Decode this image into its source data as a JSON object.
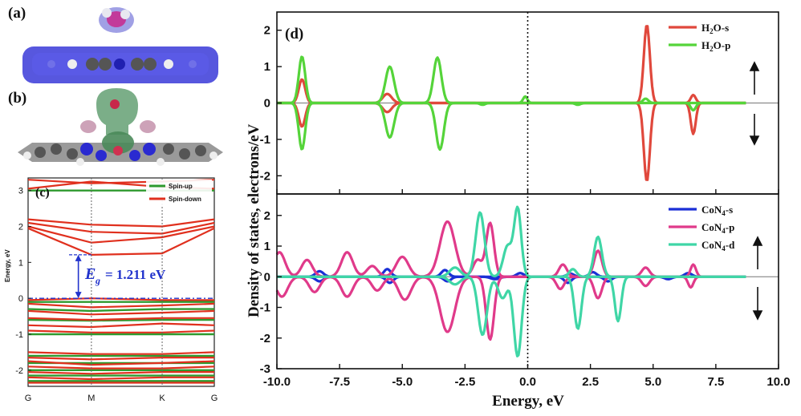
{
  "panel_labels": {
    "a": "(a)",
    "b": "(b)",
    "c": "(c)",
    "d": "(d)"
  },
  "colors": {
    "h2o_s": "#e0483c",
    "h2o_p": "#55d43a",
    "con4_s": "#1a2fd6",
    "con4_p": "#e03a8a",
    "con4_d": "#3fd6a6",
    "spin_up": "#2e9a2e",
    "spin_down": "#e0301e",
    "gap": "#2233cc"
  },
  "molecules": {
    "a_description_icon": "molecule-a-icon",
    "b_description_icon": "molecule-b-icon"
  },
  "band_structure": {
    "ylabel": "Energy, eV",
    "yticks": [
      "3",
      "2",
      "1",
      "0",
      "-1",
      "-2"
    ],
    "ytick_values": [
      3,
      2,
      1,
      0,
      -1,
      -2
    ],
    "ylim": [
      -2.45,
      3.35
    ],
    "kpoints": [
      "G",
      "M",
      "K",
      "G"
    ],
    "kpoint_positions": [
      0,
      0.34,
      0.72,
      1.0
    ],
    "legend": [
      "Spin-up",
      "Spin-down"
    ],
    "gap_symbol": "E",
    "gap_subscript": "g",
    "gap_text": "= 1.211 eV",
    "gap_value": 1.211
  },
  "chart_data": [
    {
      "type": "line",
      "panel": "d-top",
      "title": "",
      "xlabel": "Energy, eV",
      "ylabel": "Density of states, electrons/eV",
      "xlim": [
        -10,
        10
      ],
      "ylim": [
        -2.5,
        2.5
      ],
      "yticks": [
        2,
        1,
        0,
        -1,
        -2
      ],
      "ytick_labels": [
        "2",
        "1",
        "0",
        "-1",
        "-2"
      ],
      "series": [
        {
          "name": "H2O-s",
          "label_main": "H",
          "label_sub": "2",
          "label_rest": "O-s",
          "color_key": "h2o_s",
          "peaks": [
            [
              -9.0,
              0.65,
              0.18
            ],
            [
              -5.6,
              0.25,
              0.25
            ],
            [
              4.75,
              2.15,
              0.17
            ],
            [
              6.6,
              0.22,
              0.14
            ]
          ],
          "down_peaks": [
            [
              -9.0,
              0.65,
              0.18
            ],
            [
              -5.6,
              0.25,
              0.25
            ],
            [
              4.75,
              2.15,
              0.17
            ],
            [
              6.6,
              0.85,
              0.14
            ]
          ]
        },
        {
          "name": "H2O-p",
          "label_main": "H",
          "label_sub": "2",
          "label_rest": "O-p",
          "color_key": "h2o_p",
          "peaks": [
            [
              -9.0,
              1.28,
              0.18
            ],
            [
              -5.5,
              1.0,
              0.24
            ],
            [
              -3.6,
              1.25,
              0.22
            ],
            [
              -0.1,
              0.18,
              0.12
            ],
            [
              4.7,
              0.12,
              0.15
            ]
          ],
          "down_peaks": [
            [
              -9.0,
              1.28,
              0.18
            ],
            [
              -5.5,
              0.95,
              0.24
            ],
            [
              -3.5,
              1.28,
              0.22
            ],
            [
              -1.8,
              0.05,
              0.15
            ],
            [
              2.0,
              0.05,
              0.15
            ],
            [
              6.6,
              0.2,
              0.14
            ]
          ]
        }
      ],
      "legend_position": "top-right",
      "arrows": [
        "up",
        "down"
      ]
    },
    {
      "type": "line",
      "panel": "d-bottom",
      "title": "",
      "xlabel": "Energy, eV",
      "ylabel": "Density of states, electrons/eV",
      "xlim": [
        -10,
        10
      ],
      "ylim": [
        -3,
        2.7
      ],
      "yticks": [
        2,
        1,
        0,
        -1,
        -2,
        -3
      ],
      "ytick_labels": [
        "2",
        "1",
        "0",
        "-1",
        "-2",
        "-3"
      ],
      "xticks": [
        -10,
        -7.5,
        -5,
        -2.5,
        0,
        2.5,
        5,
        7.5,
        10
      ],
      "xtick_labels": [
        "-10.0",
        "-7.5",
        "-5.0",
        "-2.5",
        "0.0",
        "2.5",
        "5.0",
        "7.5",
        "10.0"
      ],
      "series": [
        {
          "name": "CoN4-s",
          "label_main": "CoN",
          "label_sub": "4",
          "label_rest": "-s",
          "color_key": "con4_s",
          "peaks": [
            [
              -8.3,
              0.18,
              0.22
            ],
            [
              -5.6,
              0.25,
              0.2
            ],
            [
              -3.3,
              0.22,
              0.2
            ],
            [
              -0.3,
              0.12,
              0.2
            ],
            [
              1.7,
              0.1,
              0.2
            ],
            [
              2.6,
              0.15,
              0.2
            ],
            [
              6.4,
              0.12,
              0.2
            ]
          ],
          "down_peaks": [
            [
              -8.3,
              0.15,
              0.22
            ],
            [
              -5.5,
              0.2,
              0.2
            ],
            [
              -3.2,
              0.15,
              0.2
            ],
            [
              -1.3,
              0.08,
              0.25
            ],
            [
              1.6,
              0.2,
              0.2
            ],
            [
              3.2,
              0.15,
              0.2
            ],
            [
              5.6,
              0.08,
              0.2
            ]
          ]
        },
        {
          "name": "CoN4-p",
          "label_main": "CoN",
          "label_sub": "4",
          "label_rest": "-p",
          "color_key": "con4_p",
          "peaks": [
            [
              -9.9,
              0.8,
              0.32
            ],
            [
              -8.8,
              0.55,
              0.3
            ],
            [
              -7.2,
              0.8,
              0.32
            ],
            [
              -6.2,
              0.35,
              0.3
            ],
            [
              -5.0,
              0.65,
              0.35
            ],
            [
              -3.2,
              1.8,
              0.42
            ],
            [
              -2.0,
              0.55,
              0.25
            ],
            [
              -1.5,
              1.75,
              0.22
            ],
            [
              1.4,
              0.4,
              0.22
            ],
            [
              2.8,
              0.85,
              0.22
            ],
            [
              4.7,
              0.3,
              0.22
            ],
            [
              6.6,
              0.4,
              0.15
            ]
          ],
          "down_peaks": [
            [
              -9.8,
              0.65,
              0.32
            ],
            [
              -8.5,
              0.5,
              0.3
            ],
            [
              -7.2,
              0.65,
              0.32
            ],
            [
              -6.0,
              0.45,
              0.3
            ],
            [
              -4.9,
              0.75,
              0.35
            ],
            [
              -3.2,
              1.8,
              0.42
            ],
            [
              -1.5,
              2.05,
              0.22
            ],
            [
              1.3,
              0.4,
              0.22
            ],
            [
              2.8,
              0.7,
              0.22
            ],
            [
              4.7,
              0.3,
              0.22
            ],
            [
              6.5,
              0.35,
              0.15
            ]
          ]
        },
        {
          "name": "CoN4-d",
          "label_main": "CoN",
          "label_sub": "4",
          "label_rest": "-d",
          "color_key": "con4_d",
          "peaks": [
            [
              -2.9,
              0.3,
              0.3
            ],
            [
              -1.9,
              2.1,
              0.25
            ],
            [
              -0.8,
              1.0,
              0.25
            ],
            [
              -0.4,
              2.2,
              0.2
            ],
            [
              2.8,
              1.3,
              0.22
            ],
            [
              1.8,
              0.25,
              0.2
            ]
          ],
          "down_peaks": [
            [
              -2.9,
              0.25,
              0.3
            ],
            [
              -1.8,
              1.9,
              0.25
            ],
            [
              -1.0,
              0.7,
              0.25
            ],
            [
              -0.4,
              2.6,
              0.22
            ],
            [
              2.0,
              1.7,
              0.2
            ],
            [
              3.6,
              1.45,
              0.18
            ]
          ]
        }
      ],
      "legend_position": "top-right",
      "arrows": [
        "up",
        "down"
      ]
    }
  ],
  "axes_text": {
    "x_axis_title": "Energy, eV",
    "y_axis_title": "Density of states, electrons/eV"
  }
}
